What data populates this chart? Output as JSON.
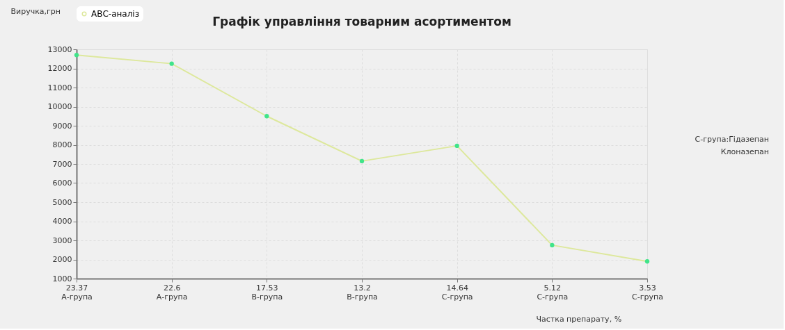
{
  "chart_data": {
    "type": "line",
    "title": "Графік управління товарним асортиментом",
    "xlabel": "Частка препарату, %",
    "ylabel": "Виручка,грн",
    "categories": [
      "23.37 А-група",
      "22.6 А-група",
      "17.53 В-група",
      "13.2 В-група",
      "14.64 С-група",
      "5.12 С-група",
      "3.53 С-група"
    ],
    "series": [
      {
        "name": "АВС-аналіз",
        "color": "#dde89c",
        "values": [
          12700,
          12250,
          9500,
          7150,
          7950,
          2750,
          1900
        ]
      }
    ],
    "ylim": [
      1000,
      13000
    ],
    "yticks": [
      1000,
      2000,
      3000,
      4000,
      5000,
      6000,
      7000,
      8000,
      9000,
      10000,
      11000,
      12000,
      13000
    ],
    "grid": true,
    "legend": "top left",
    "marker": "circle",
    "annotations": [
      "С-група:Гідазепан",
      "Клоназепан"
    ]
  }
}
